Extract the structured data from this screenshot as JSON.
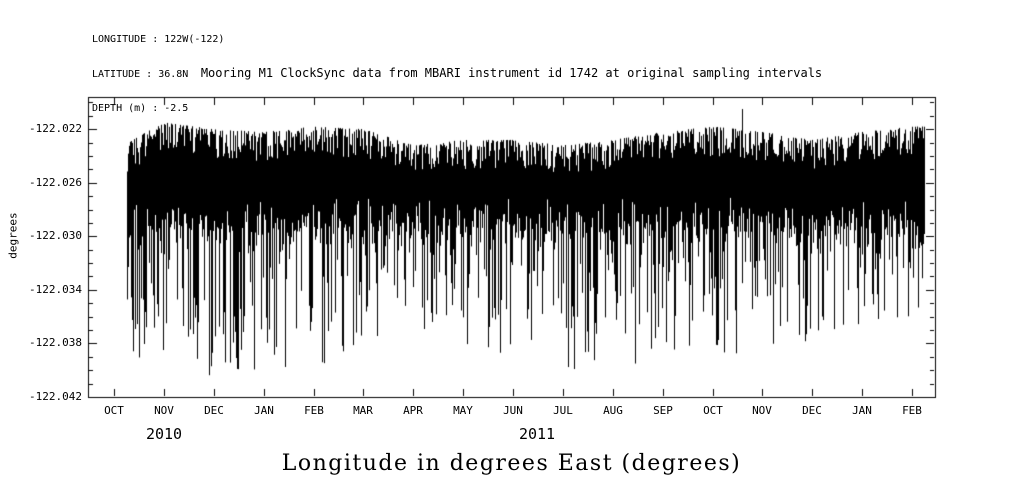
{
  "metadata": {
    "longitude": "LONGITUDE : 122W(-122)",
    "latitude": "LATITUDE : 36.8N",
    "depth": "DEPTH (m) : -2.5"
  },
  "colors": {
    "line": "#000000",
    "background": "#ffffff"
  },
  "chart_data": {
    "type": "line",
    "title": "Mooring M1 ClockSync data from MBARI instrument id 1742 at original sampling intervals",
    "ylabel": "degrees",
    "bottom_label": "Longitude in degrees East (degrees)",
    "x_tick_labels": [
      "OCT",
      "NOV",
      "DEC",
      "JAN",
      "FEB",
      "MAR",
      "APR",
      "MAY",
      "JUN",
      "JUL",
      "AUG",
      "SEP",
      "OCT",
      "NOV",
      "DEC",
      "JAN",
      "FEB"
    ],
    "year_labels": [
      {
        "text": "2010",
        "month_index": 1.0
      },
      {
        "text": "2011",
        "month_index": 8.48
      }
    ],
    "y_tick_labels": [
      "-122.042",
      "-122.038",
      "-122.034",
      "-122.030",
      "-122.026",
      "-122.022"
    ],
    "y_ticks": [
      -122.042,
      -122.038,
      -122.034,
      -122.03,
      -122.026,
      -122.022
    ],
    "y_minor_step": 0.001,
    "ylim": [
      -122.042,
      -122.0196
    ],
    "x_range_months": [
      0.26,
      16.24
    ],
    "grid": false,
    "legend": false,
    "series": [
      {
        "name": "longitude",
        "monthly_envelope": [
          {
            "month": "OCT 2010",
            "top": -122.0235,
            "bottom": -122.039,
            "spike_prob": 0.5
          },
          {
            "month": "NOV 2010",
            "top": -122.0215,
            "bottom": -122.0395,
            "spike_prob": 0.5
          },
          {
            "month": "DEC 2010",
            "top": -122.022,
            "bottom": -122.0405,
            "spike_prob": 0.45
          },
          {
            "month": "JAN 2011",
            "top": -122.0222,
            "bottom": -122.04,
            "spike_prob": 0.45
          },
          {
            "month": "FEB 2011",
            "top": -122.0218,
            "bottom": -122.0405,
            "spike_prob": 0.45
          },
          {
            "month": "MAR 2011",
            "top": -122.022,
            "bottom": -122.038,
            "spike_prob": 0.33
          },
          {
            "month": "APR 2011",
            "top": -122.0232,
            "bottom": -122.037,
            "spike_prob": 0.3
          },
          {
            "month": "MAY 2011",
            "top": -122.0228,
            "bottom": -122.038,
            "spike_prob": 0.35
          },
          {
            "month": "JUN 2011",
            "top": -122.0228,
            "bottom": -122.039,
            "spike_prob": 0.4
          },
          {
            "month": "JUL 2011",
            "top": -122.0232,
            "bottom": -122.04,
            "spike_prob": 0.45
          },
          {
            "month": "AUG 2011",
            "top": -122.0228,
            "bottom": -122.04,
            "spike_prob": 0.45
          },
          {
            "month": "SEP 2011",
            "top": -122.0222,
            "bottom": -122.039,
            "spike_prob": 0.45
          },
          {
            "month": "OCT 2011",
            "top": -122.0218,
            "bottom": -122.039,
            "spike_prob": 0.4
          },
          {
            "month": "NOV 2011",
            "top": -122.0222,
            "bottom": -122.0385,
            "spike_prob": 0.4
          },
          {
            "month": "DEC 2011",
            "top": -122.0228,
            "bottom": -122.038,
            "spike_prob": 0.4
          },
          {
            "month": "JAN 2012",
            "top": -122.0222,
            "bottom": -122.0365,
            "spike_prob": 0.33
          },
          {
            "month": "FEB 2012",
            "top": -122.0218,
            "bottom": -122.036,
            "spike_prob": 0.33
          }
        ]
      }
    ],
    "annotations": [
      {
        "type": "upward-spike",
        "month_index": 12.6,
        "top": -122.0205,
        "bottom": -122.0335
      }
    ]
  }
}
